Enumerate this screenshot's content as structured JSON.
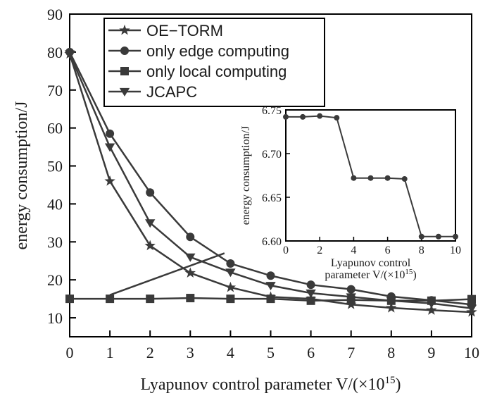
{
  "chart_data": [
    {
      "type": "line",
      "xlabel": "Lyapunov control parameter V/(×10",
      "xlabel_sup": "15",
      "xlabel_close": ")",
      "ylabel": "energy consumption/J",
      "xlim": [
        0,
        10
      ],
      "ylim": [
        5,
        90
      ],
      "x_ticks": [
        0,
        1,
        2,
        3,
        4,
        5,
        6,
        7,
        8,
        9,
        10
      ],
      "y_ticks": [
        10,
        20,
        30,
        40,
        50,
        60,
        70,
        80,
        90
      ],
      "grid": false,
      "legend_position": "top-left",
      "x": [
        0,
        1,
        2,
        3,
        4,
        5,
        6,
        7,
        8,
        9,
        10
      ],
      "series": [
        {
          "name": "OE−TORM",
          "marker": "star",
          "values": [
            79.5,
            46,
            29,
            21.8,
            18,
            15.5,
            15,
            13.5,
            12.6,
            12,
            11.5
          ]
        },
        {
          "name": "only edge computing",
          "marker": "circle",
          "values": [
            80,
            58.5,
            43,
            31.3,
            24.3,
            21.1,
            18.7,
            17.5,
            15.6,
            14.6,
            13.5
          ]
        },
        {
          "name": "only local computing",
          "marker": "square",
          "values": [
            15,
            15,
            15,
            15.2,
            15,
            15,
            14.5,
            14.7,
            14.5,
            14.5,
            14.9
          ]
        },
        {
          "name": "JCAPC",
          "marker": "triangle-down",
          "values": [
            79.5,
            55,
            35,
            26,
            22,
            18.5,
            16.5,
            15.5,
            14.5,
            13.8,
            12.5
          ]
        }
      ]
    },
    {
      "type": "line",
      "xlabel_line1": "Lyapunov control",
      "xlabel_line2": "parameter V/(×10",
      "xlabel_sup": "15",
      "xlabel_close": ")",
      "ylabel": "energy consumption/J",
      "xlim": [
        0,
        10
      ],
      "ylim": [
        6.6,
        6.75
      ],
      "x_ticks": [
        0,
        2,
        4,
        6,
        8,
        10
      ],
      "y_ticks": [
        "6.60",
        "6.65",
        "6.70",
        "6.75"
      ],
      "grid": false,
      "x": [
        0,
        1,
        2,
        3,
        4,
        5,
        6,
        7,
        8,
        9,
        10
      ],
      "series": [
        {
          "marker": "circle",
          "values": [
            6.742,
            6.742,
            6.743,
            6.741,
            6.672,
            6.672,
            6.672,
            6.671,
            6.605,
            6.605,
            6.605
          ]
        }
      ]
    }
  ]
}
